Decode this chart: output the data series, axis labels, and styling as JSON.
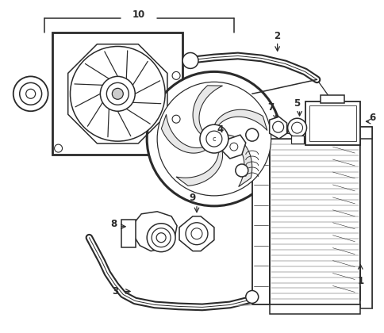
{
  "background_color": "#ffffff",
  "line_color": "#2a2a2a",
  "line_width": 1.1,
  "figsize": [
    4.85,
    4.2
  ],
  "dpi": 100
}
